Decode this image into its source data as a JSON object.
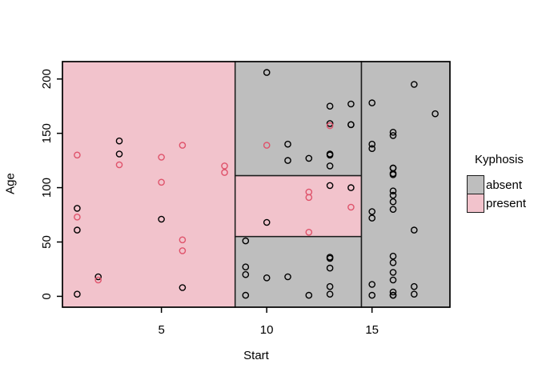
{
  "chart_data": {
    "type": "scatter",
    "title": "",
    "xlabel": "Start",
    "ylabel": "Age",
    "xlim": [
      0.3,
      18.7
    ],
    "ylim": [
      -10,
      216
    ],
    "x_ticks": [
      5,
      10,
      15
    ],
    "y_ticks": [
      0,
      50,
      100,
      150,
      200
    ],
    "grid": false,
    "point_style": "open-circle",
    "colors": {
      "background": "#ffffff",
      "axis": "#000000",
      "region_border": "#1c1c1c",
      "absent_fill": "#bebebe",
      "present_fill": "#f2c3cc",
      "absent_point": "#000000",
      "present_point": "#df536b"
    },
    "legend": {
      "title": "Kyphosis",
      "position": "right",
      "entries": [
        {
          "class": "absent",
          "label": "absent"
        },
        {
          "class": "present",
          "label": "present"
        }
      ]
    },
    "regions": [
      {
        "class": "present",
        "x0": 0.3,
        "x1": 8.5,
        "y0": -10,
        "y1": 216
      },
      {
        "class": "absent",
        "x0": 8.5,
        "x1": 14.5,
        "y0": 111,
        "y1": 216
      },
      {
        "class": "present",
        "x0": 8.5,
        "x1": 14.5,
        "y0": 55,
        "y1": 111
      },
      {
        "class": "absent",
        "x0": 8.5,
        "x1": 14.5,
        "y0": -10,
        "y1": 55
      },
      {
        "class": "absent",
        "x0": 14.5,
        "x1": 18.7,
        "y0": -10,
        "y1": 216
      }
    ],
    "series": [
      {
        "name": "absent",
        "points": [
          [
            5,
            71
          ],
          [
            14,
            158
          ],
          [
            1,
            2
          ],
          [
            15,
            1
          ],
          [
            16,
            1
          ],
          [
            17,
            61
          ],
          [
            16,
            37
          ],
          [
            16,
            113
          ],
          [
            16,
            148
          ],
          [
            2,
            18
          ],
          [
            12,
            1
          ],
          [
            18,
            168
          ],
          [
            16,
            1
          ],
          [
            15,
            78
          ],
          [
            13,
            175
          ],
          [
            16,
            80
          ],
          [
            9,
            27
          ],
          [
            16,
            22
          ],
          [
            3,
            131
          ],
          [
            13,
            9
          ],
          [
            6,
            8
          ],
          [
            14,
            100
          ],
          [
            16,
            4
          ],
          [
            16,
            151
          ],
          [
            16,
            31
          ],
          [
            11,
            125
          ],
          [
            13,
            130
          ],
          [
            16,
            112
          ],
          [
            11,
            140
          ],
          [
            16,
            93
          ],
          [
            9,
            1
          ],
          [
            9,
            20
          ],
          [
            13,
            35
          ],
          [
            3,
            143
          ],
          [
            1,
            61
          ],
          [
            16,
            97
          ],
          [
            15,
            136
          ],
          [
            13,
            131
          ],
          [
            14,
            177
          ],
          [
            10,
            68
          ],
          [
            17,
            9
          ],
          [
            17,
            2
          ],
          [
            15,
            140
          ],
          [
            15,
            72
          ],
          [
            13,
            2
          ],
          [
            9,
            51
          ],
          [
            13,
            102
          ],
          [
            1,
            81
          ],
          [
            16,
            118
          ],
          [
            16,
            118
          ],
          [
            10,
            17
          ],
          [
            17,
            195
          ],
          [
            13,
            159
          ],
          [
            11,
            18
          ],
          [
            16,
            15
          ],
          [
            14,
            158
          ],
          [
            12,
            127
          ],
          [
            16,
            87
          ],
          [
            10,
            206
          ],
          [
            15,
            11
          ],
          [
            15,
            178
          ],
          [
            13,
            26
          ],
          [
            13,
            120
          ],
          [
            13,
            36
          ]
        ]
      },
      {
        "name": "present",
        "points": [
          [
            5,
            128
          ],
          [
            12,
            59
          ],
          [
            14,
            82
          ],
          [
            2,
            15
          ],
          [
            5,
            105
          ],
          [
            12,
            96
          ],
          [
            6,
            52
          ],
          [
            12,
            91
          ],
          [
            1,
            73
          ],
          [
            10,
            139
          ],
          [
            3,
            121
          ],
          [
            6,
            139
          ],
          [
            8,
            120
          ],
          [
            1,
            130
          ],
          [
            8,
            114
          ],
          [
            13,
            157
          ],
          [
            6,
            42
          ]
        ]
      }
    ]
  }
}
